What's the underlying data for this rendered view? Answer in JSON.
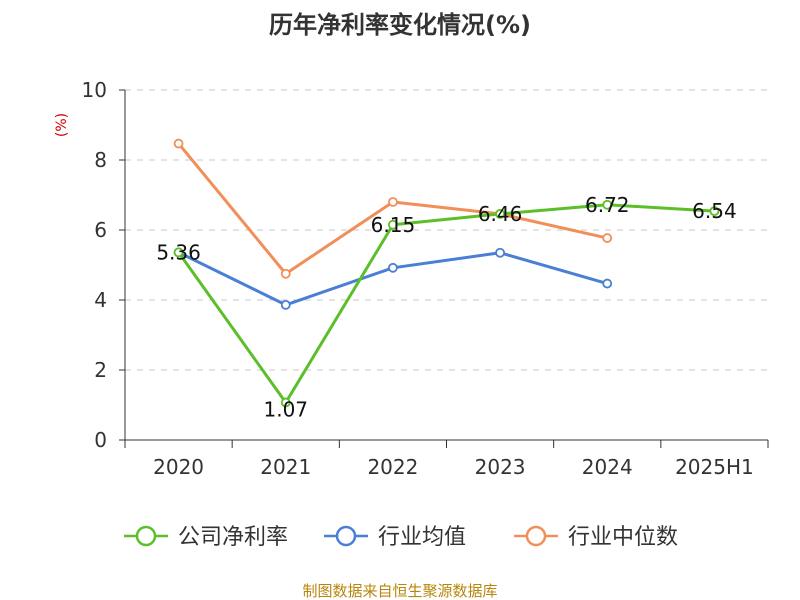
{
  "chart_data": {
    "type": "line",
    "title": "历年净利率变化情况(%)",
    "ylabel": "(%)",
    "xlabel": "",
    "categories": [
      "2020",
      "2021",
      "2022",
      "2023",
      "2024",
      "2025H1"
    ],
    "ylim": [
      0,
      10
    ],
    "yticks": [
      0,
      2,
      4,
      6,
      8,
      10
    ],
    "grid": true,
    "legend_position": "bottom",
    "series": [
      {
        "name": "公司净利率",
        "color": "#5cbf2a",
        "values": [
          5.36,
          1.07,
          6.15,
          6.46,
          6.72,
          6.54
        ],
        "labels": [
          "5.36",
          "1.07",
          "6.15",
          "6.46",
          "6.72",
          "6.54"
        ]
      },
      {
        "name": "行业均值",
        "color": "#4a7fd6",
        "values": [
          5.36,
          3.86,
          4.92,
          5.35,
          4.47,
          null
        ]
      },
      {
        "name": "行业中位数",
        "color": "#f28e58",
        "values": [
          8.47,
          4.75,
          6.8,
          6.46,
          5.77,
          null
        ]
      }
    ]
  },
  "footer": {
    "source": "制图数据来自恒生聚源数据库"
  }
}
